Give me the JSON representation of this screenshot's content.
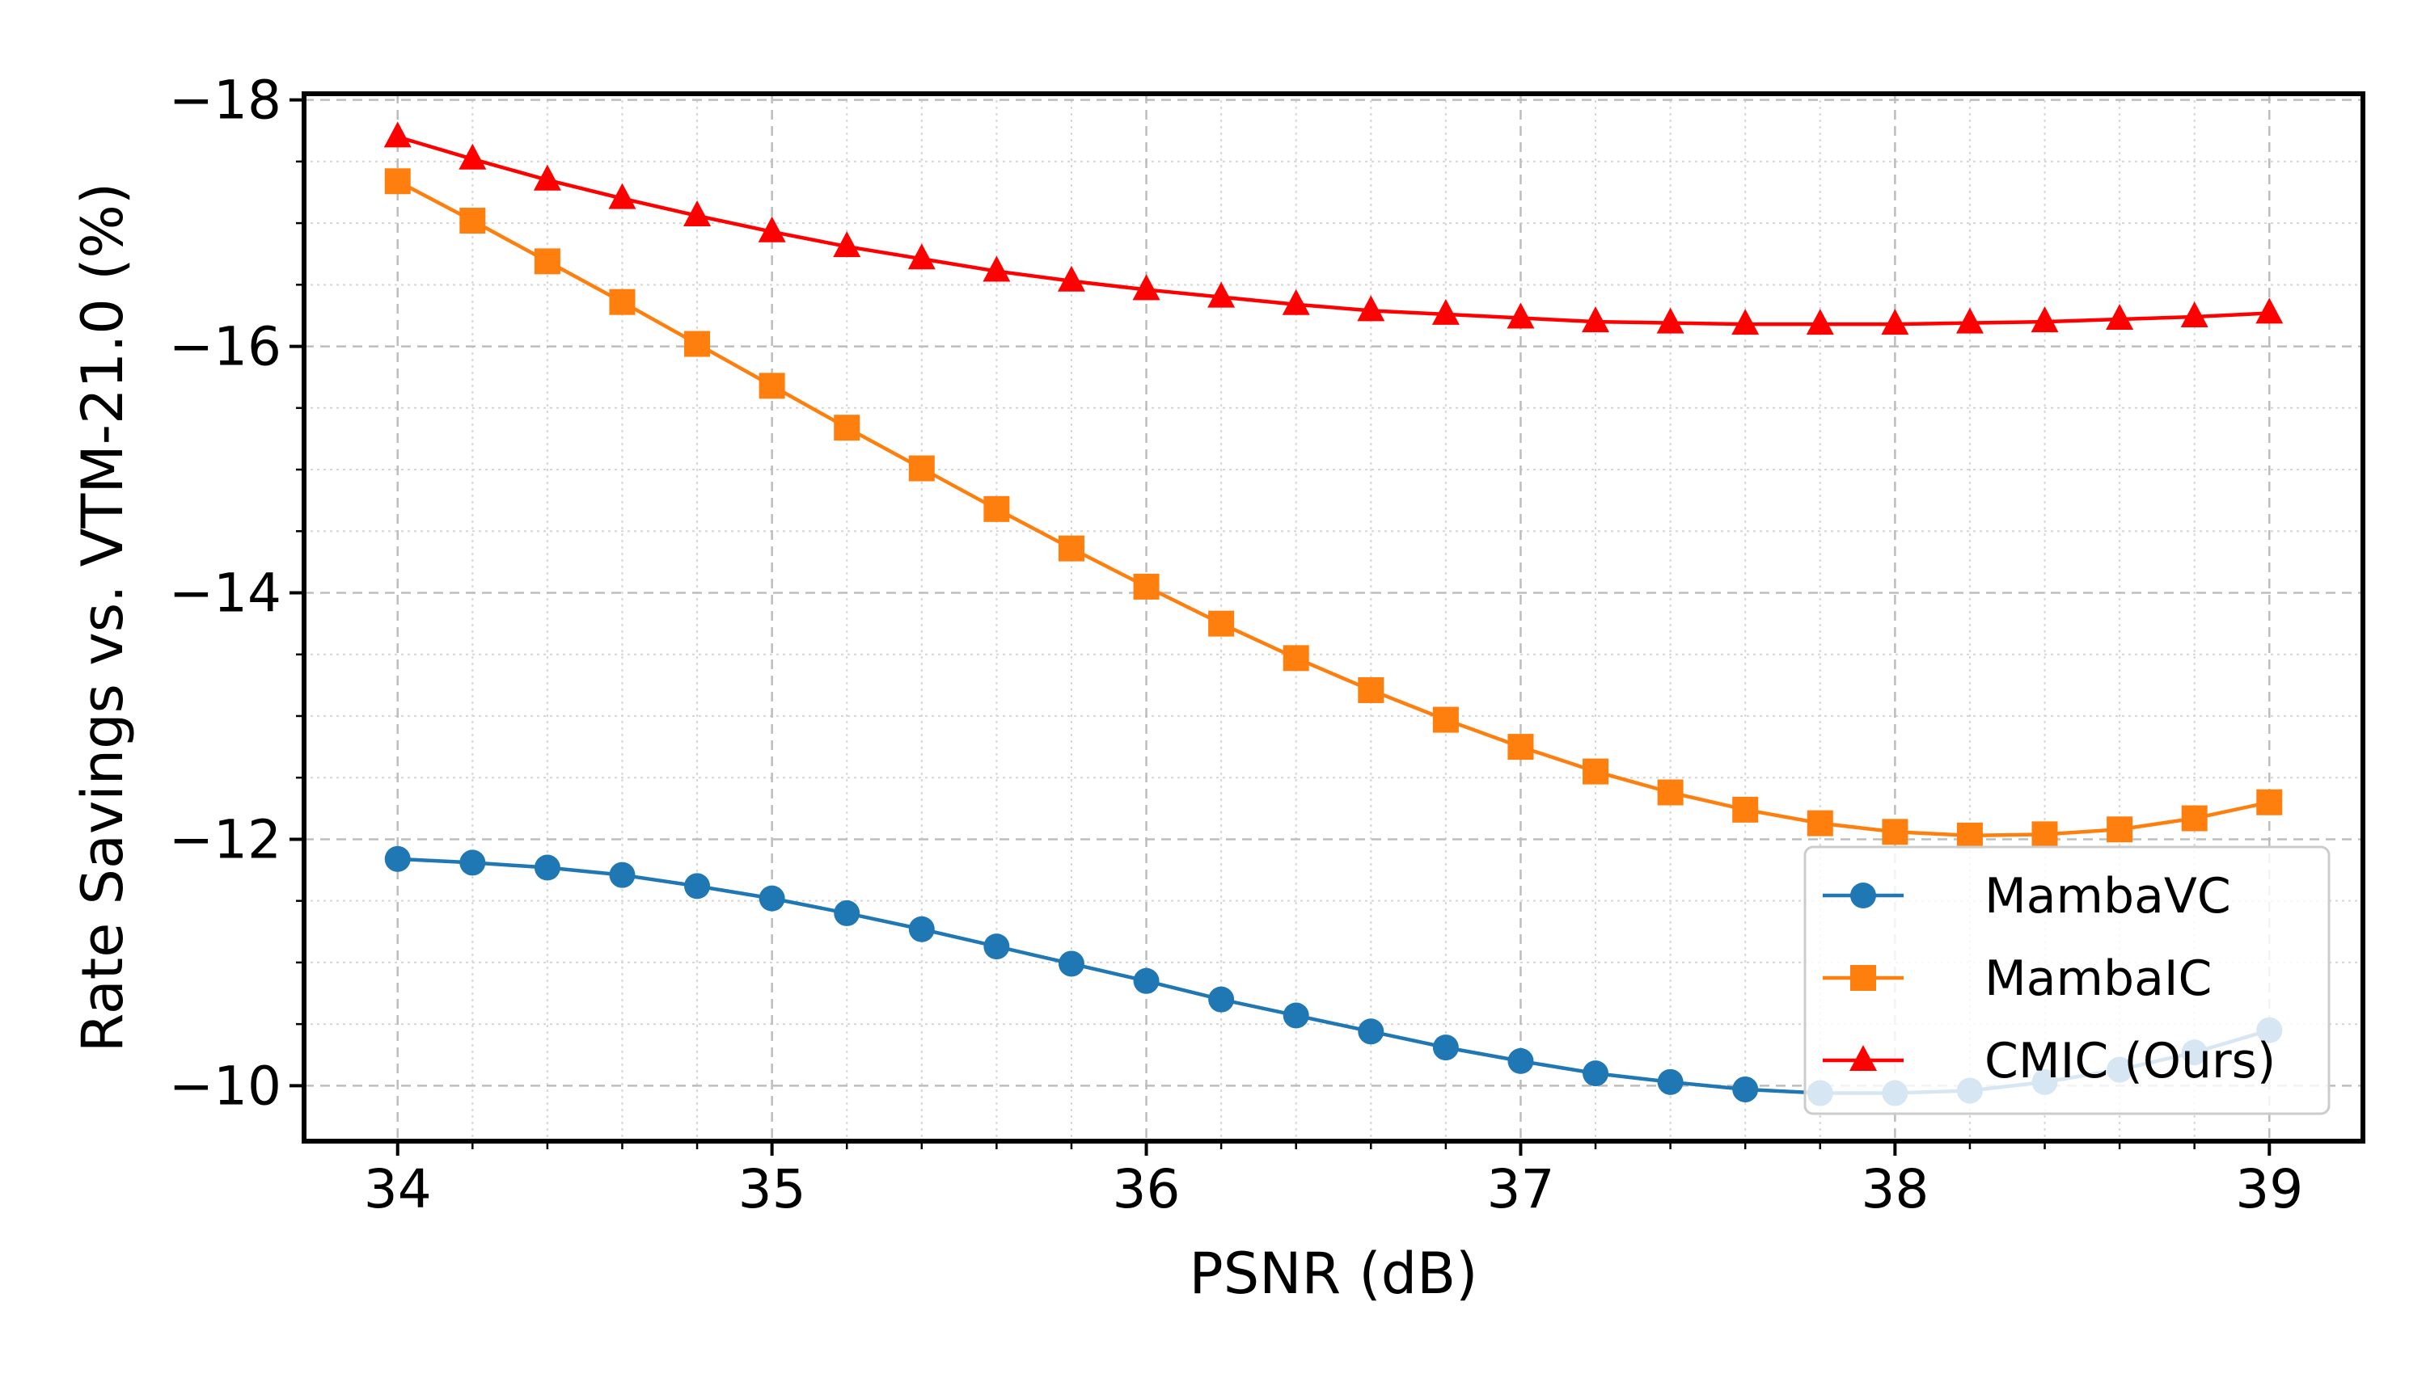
{
  "chart_data": {
    "type": "line",
    "title": "",
    "xlabel": "PSNR (dB)",
    "ylabel": "Rate Savings vs. VTM-21.0 (%)",
    "xlim": [
      33.75,
      39.25
    ],
    "ylim": [
      -9.55,
      -18.05
    ],
    "y_inverted": true,
    "xticks": [
      34,
      35,
      36,
      37,
      38,
      39
    ],
    "xtick_labels": [
      "34",
      "35",
      "36",
      "37",
      "38",
      "39"
    ],
    "yticks": [
      -18,
      -16,
      -14,
      -12,
      -10
    ],
    "ytick_labels": [
      "−18",
      "−16",
      "−14",
      "−12",
      "−10"
    ],
    "grid": true,
    "legend_position": "lower-right",
    "x": [
      34.0,
      34.2,
      34.4,
      34.6,
      34.8,
      35.0,
      35.2,
      35.4,
      35.6,
      35.8,
      36.0,
      36.2,
      36.4,
      36.6,
      36.8,
      37.0,
      37.2,
      37.4,
      37.6,
      37.8,
      38.0,
      38.2,
      38.4,
      38.6,
      38.8,
      39.0
    ],
    "series": [
      {
        "name": "MambaVC",
        "color": "#1f77b4",
        "marker": "circle",
        "values": [
          -11.84,
          -11.81,
          -11.77,
          -11.71,
          -11.62,
          -11.52,
          -11.4,
          -11.27,
          -11.13,
          -10.99,
          -10.85,
          -10.7,
          -10.57,
          -10.44,
          -10.31,
          -10.2,
          -10.1,
          -10.03,
          -9.97,
          -9.94,
          -9.94,
          -9.96,
          -10.03,
          -10.13,
          -10.27,
          -10.45
        ]
      },
      {
        "name": "MambaIC",
        "color": "#ff7f0e",
        "marker": "square",
        "values": [
          -17.34,
          -17.02,
          -16.69,
          -16.36,
          -16.02,
          -15.68,
          -15.34,
          -15.01,
          -14.68,
          -14.36,
          -14.05,
          -13.75,
          -13.47,
          -13.21,
          -12.97,
          -12.75,
          -12.55,
          -12.38,
          -12.24,
          -12.13,
          -12.06,
          -12.03,
          -12.04,
          -12.08,
          -12.17,
          -12.3
        ]
      },
      {
        "name": "CMIC (Ours)",
        "color": "#ff0000",
        "marker": "triangle",
        "values": [
          -17.7,
          -17.52,
          -17.35,
          -17.2,
          -17.06,
          -16.93,
          -16.81,
          -16.71,
          -16.61,
          -16.53,
          -16.46,
          -16.4,
          -16.34,
          -16.29,
          -16.26,
          -16.23,
          -16.2,
          -16.19,
          -16.18,
          -16.18,
          -16.18,
          -16.19,
          -16.2,
          -16.22,
          -16.24,
          -16.27
        ]
      }
    ]
  }
}
